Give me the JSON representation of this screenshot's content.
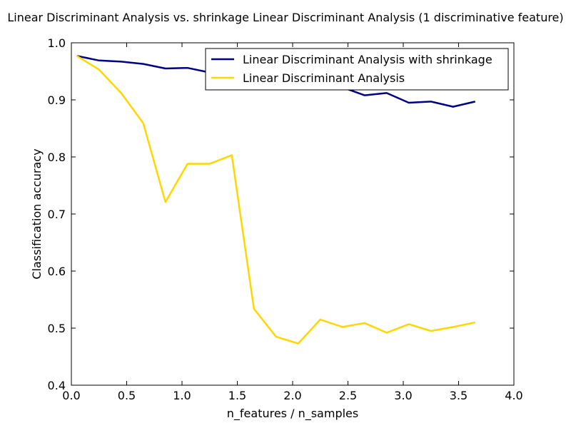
{
  "chart_data": {
    "type": "line",
    "title": "Linear Discriminant Analysis vs. shrinkage Linear Discriminant Analysis (1 discriminative feature)",
    "xlabel": "n_features / n_samples",
    "ylabel": "Classification accuracy",
    "xlim": [
      0.0,
      4.0
    ],
    "ylim": [
      0.4,
      1.0
    ],
    "xticks": [
      "0.0",
      "0.5",
      "1.0",
      "1.5",
      "2.0",
      "2.5",
      "3.0",
      "3.5",
      "4.0"
    ],
    "yticks": [
      "0.4",
      "0.5",
      "0.6",
      "0.7",
      "0.8",
      "0.9",
      "1.0"
    ],
    "grid": false,
    "legend_position": "upper-right",
    "x": [
      0.05,
      0.25,
      0.45,
      0.65,
      0.85,
      1.05,
      1.25,
      1.45,
      1.65,
      1.85,
      2.05,
      2.25,
      2.45,
      2.65,
      2.85,
      3.05,
      3.25,
      3.45,
      3.65
    ],
    "series": [
      {
        "name": "Linear Discriminant Analysis with shrinkage",
        "color": "#000080",
        "values": [
          0.977,
          0.969,
          0.967,
          0.963,
          0.955,
          0.956,
          0.948,
          0.945,
          0.935,
          0.93,
          0.928,
          0.928,
          0.922,
          0.908,
          0.912,
          0.895,
          0.897,
          0.888,
          0.897
        ]
      },
      {
        "name": "Linear Discriminant Analysis",
        "color": "#ffd700",
        "values": [
          0.977,
          0.953,
          0.912,
          0.859,
          0.721,
          0.788,
          0.788,
          0.803,
          0.534,
          0.485,
          0.473,
          0.515,
          0.502,
          0.509,
          0.492,
          0.507,
          0.495,
          0.502,
          0.51
        ]
      }
    ]
  }
}
